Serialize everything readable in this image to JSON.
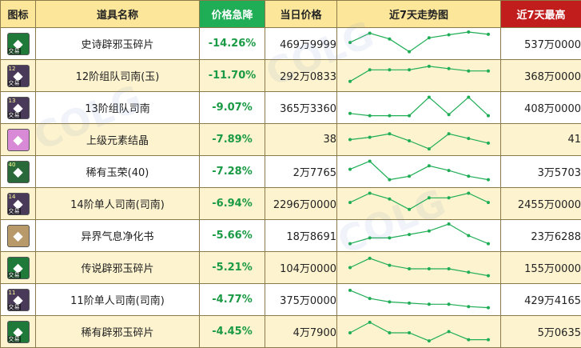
{
  "header": {
    "icon": "图标",
    "name": "道具名称",
    "drop": "价格急降",
    "price": "当日价格",
    "trend": "近7天走势图",
    "max": "近7天最高"
  },
  "colors": {
    "drop_header_bg": "#1fad55",
    "max_header_bg": "#c21d1d",
    "header_bg": "#fbe69a",
    "row_alt_bg": "#fdf3cf",
    "drop_text": "#1a9a44",
    "trend_line": "#1fad55"
  },
  "rows": [
    {
      "name": "史诗辟邪玉碎片",
      "drop": "-14.26%",
      "price": "469万9999",
      "max": "537万0000",
      "icon": {
        "name": "jade-fragment-icon",
        "color": "#1f7a3a",
        "badge": "交易",
        "tier": ""
      },
      "trend": [
        0.45,
        0.05,
        0.3,
        0.85,
        0.25,
        0.12,
        0.0,
        0.1
      ]
    },
    {
      "name": "12阶组队司南(玉)",
      "drop": "-11.70%",
      "price": "292万0833",
      "max": "368万0000",
      "icon": {
        "name": "compass-icon",
        "color": "#4a3a5a",
        "badge": "交易",
        "tier": "12"
      },
      "trend": [
        0.75,
        0.25,
        0.25,
        0.25,
        0.1,
        0.2,
        0.3,
        0.3
      ]
    },
    {
      "name": "13阶组队司南",
      "drop": "-9.07%",
      "price": "365万3360",
      "max": "408万0000",
      "icon": {
        "name": "compass-icon",
        "color": "#4a3a5a",
        "badge": "交易",
        "tier": "13"
      },
      "trend": [
        0.75,
        0.85,
        0.85,
        0.85,
        0.05,
        0.8,
        0.05,
        0.85
      ]
    },
    {
      "name": "上级元素结晶",
      "drop": "-7.89%",
      "price": "38",
      "max": "41",
      "icon": {
        "name": "element-crystal-icon",
        "color": "#d98ad6",
        "badge": "",
        "tier": ""
      },
      "trend": [
        0.5,
        0.4,
        0.25,
        0.55,
        0.9,
        0.25,
        0.45,
        0.65
      ]
    },
    {
      "name": "稀有玉荣(40)",
      "drop": "-7.28%",
      "price": "2万7765",
      "max": "3万5703",
      "icon": {
        "name": "jade-glory-icon",
        "color": "#2a6a3a",
        "badge": "",
        "tier": "40"
      },
      "trend": [
        0.4,
        0.05,
        0.85,
        0.7,
        0.25,
        0.45,
        0.7,
        0.85
      ]
    },
    {
      "name": "14阶单人司南(司南)",
      "drop": "-6.94%",
      "price": "2296万0000",
      "max": "2455万0000",
      "icon": {
        "name": "compass-icon",
        "color": "#4a3a5a",
        "badge": "交易",
        "tier": "14"
      },
      "trend": [
        0.45,
        0.05,
        0.3,
        0.75,
        0.25,
        0.25,
        0.05,
        0.45
      ]
    },
    {
      "name": "异界气息净化书",
      "drop": "-5.66%",
      "price": "18万8691",
      "max": "23万6288",
      "icon": {
        "name": "purification-book-icon",
        "color": "#b89a6a",
        "badge": "",
        "tier": ""
      },
      "trend": [
        0.85,
        0.6,
        0.6,
        0.45,
        0.3,
        0.0,
        0.5,
        0.85
      ]
    },
    {
      "name": "传说辟邪玉碎片",
      "drop": "-5.21%",
      "price": "104万0000",
      "max": "155万0000",
      "icon": {
        "name": "jade-fragment-icon",
        "color": "#1f7a3a",
        "badge": "交易",
        "tier": ""
      },
      "trend": [
        0.5,
        0.1,
        0.4,
        0.55,
        0.55,
        0.55,
        0.7,
        0.85
      ]
    },
    {
      "name": "11阶单人司南(司南)",
      "drop": "-4.77%",
      "price": "375万0000",
      "max": "429万4165",
      "icon": {
        "name": "compass-icon",
        "color": "#4a3a5a",
        "badge": "交易",
        "tier": "11"
      },
      "trend": [
        0.1,
        0.45,
        0.6,
        0.65,
        0.7,
        0.7,
        0.8,
        0.85
      ]
    },
    {
      "name": "稀有辟邪玉碎片",
      "drop": "-4.45%",
      "price": "4万7900",
      "max": "5万0635",
      "icon": {
        "name": "jade-fragment-icon",
        "color": "#1f7a3a",
        "badge": "交易",
        "tier": ""
      },
      "trend": [
        0.55,
        0.1,
        0.55,
        0.55,
        0.9,
        0.5,
        0.85,
        0.85
      ]
    }
  ]
}
